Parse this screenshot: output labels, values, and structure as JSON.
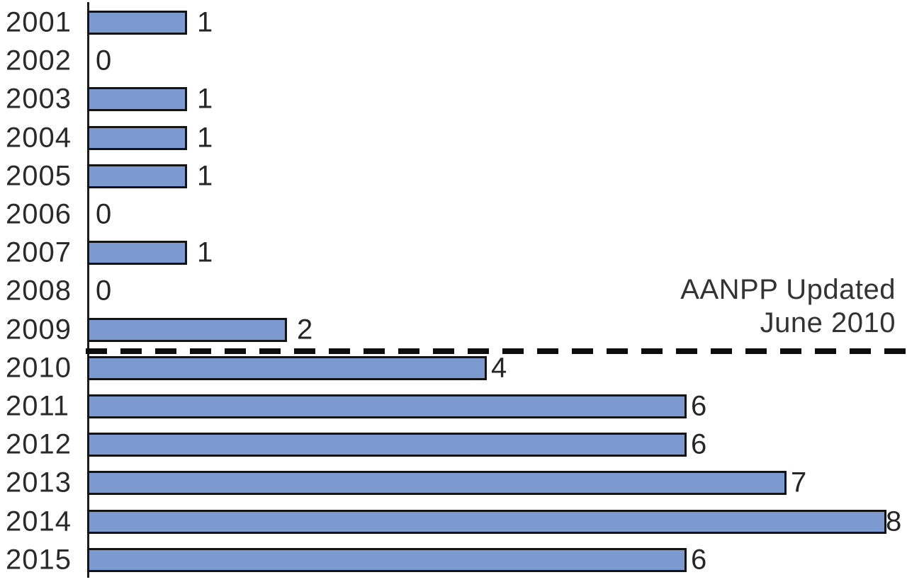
{
  "chart_data": {
    "type": "bar",
    "orientation": "horizontal",
    "title": "",
    "xlabel": "",
    "ylabel": "",
    "categories": [
      "2001",
      "2002",
      "2003",
      "2004",
      "2005",
      "2006",
      "2007",
      "2008",
      "2009",
      "2010",
      "2011",
      "2012",
      "2013",
      "2014",
      "2015"
    ],
    "values": [
      1,
      0,
      1,
      1,
      1,
      0,
      1,
      0,
      2,
      4,
      6,
      6,
      7,
      8,
      6
    ],
    "xlim": [
      0,
      8.2
    ],
    "gridlines": false,
    "data_labels": true,
    "legend": null,
    "annotation": {
      "line1": "AANPP Updated",
      "line2": "June 2010",
      "attached_to": "dashed line between 2009 and 2010"
    },
    "reference_line": {
      "style": "dashed",
      "between_categories": [
        "2009",
        "2010"
      ],
      "color": "#0d0d0d"
    },
    "colors": {
      "bar_fill": "#7C99D0",
      "bar_border": "#141414",
      "axis": "#1c1c1c",
      "text": "#2a2a2a"
    }
  }
}
